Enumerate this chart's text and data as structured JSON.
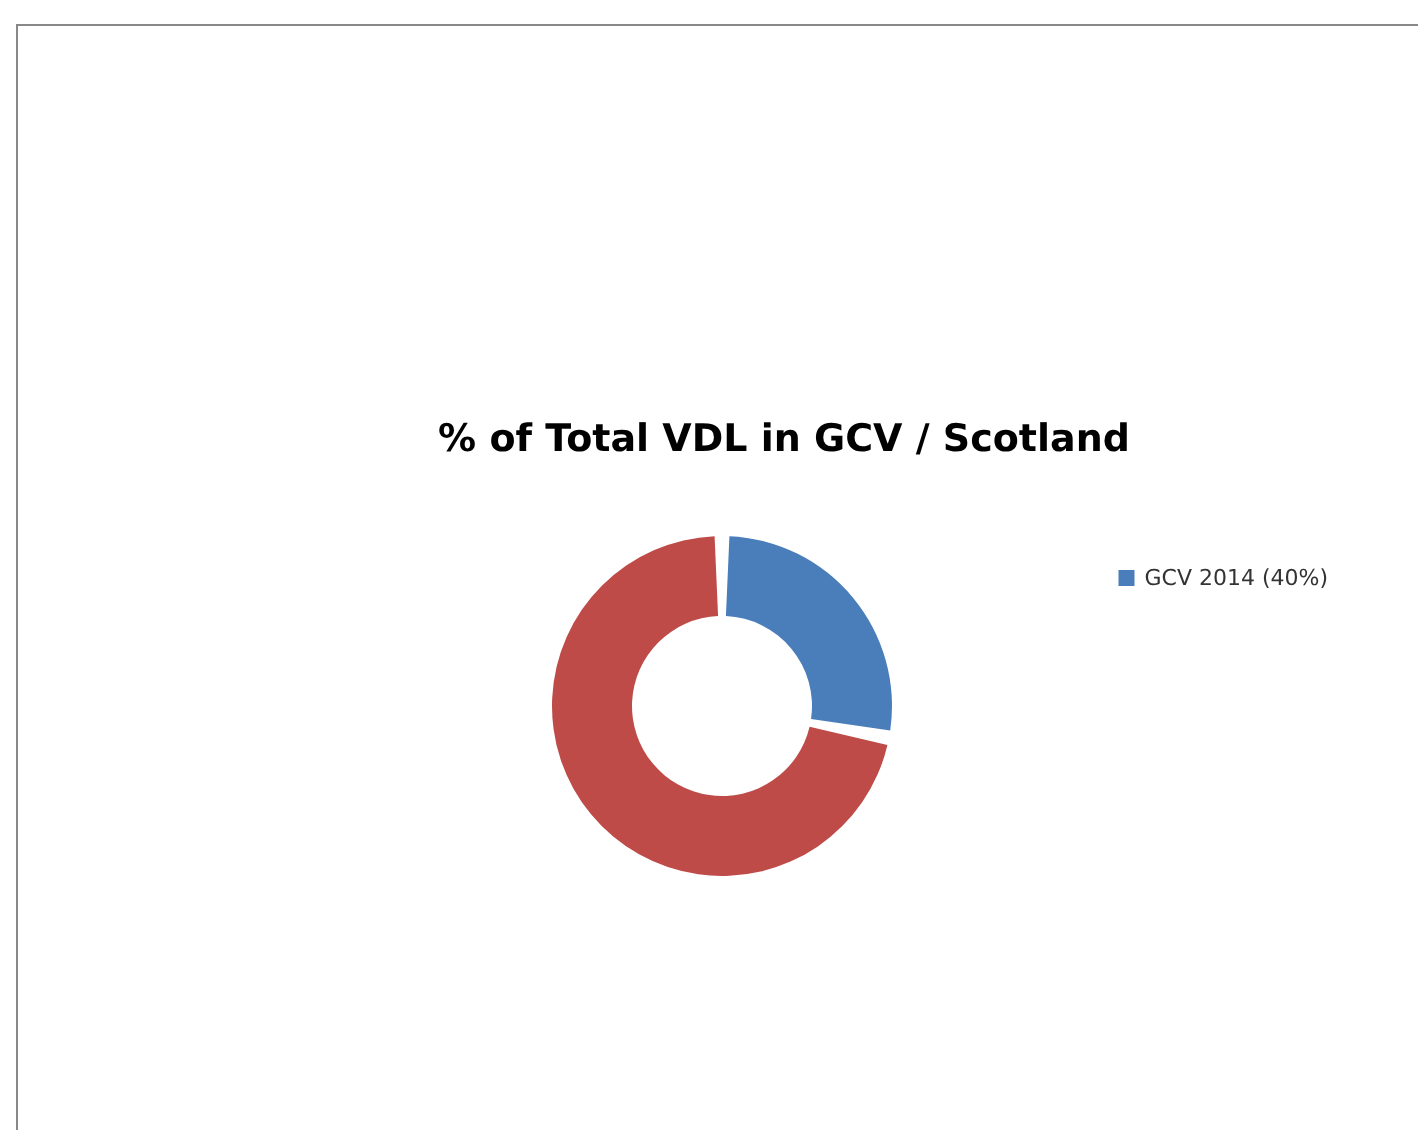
{
  "chart_data": {
    "type": "donut",
    "title": "% of Total VDL in GCV / Scotland",
    "categories": [
      "GCV 2014 (40%)",
      null
    ],
    "values": [
      28,
      72
    ],
    "colors": [
      "#4a7ebb",
      "#be4b48"
    ],
    "legend": "right"
  }
}
